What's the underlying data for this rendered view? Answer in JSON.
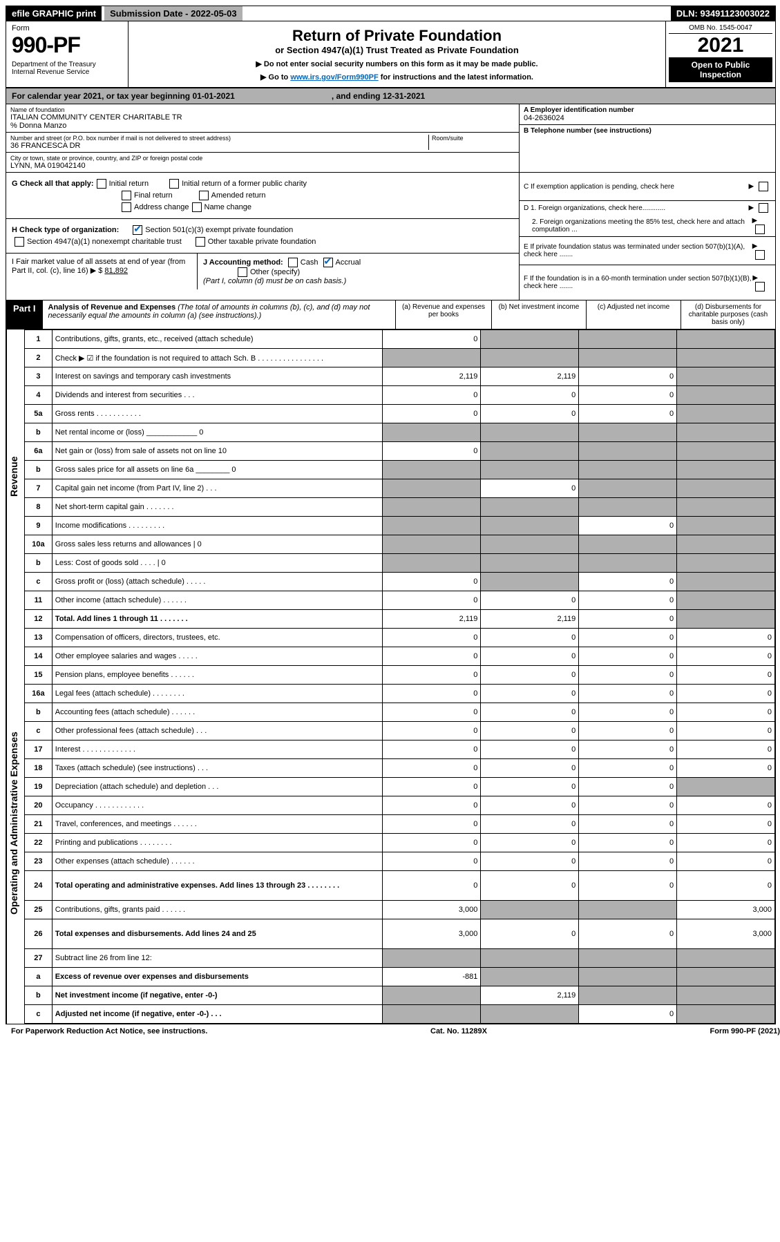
{
  "topbar": {
    "efile": "efile GRAPHIC print",
    "submission": "Submission Date - 2022-05-03",
    "dln": "DLN: 93491123003022"
  },
  "header": {
    "form": "Form",
    "num": "990-PF",
    "dept": "Department of the Treasury\nInternal Revenue Service",
    "title": "Return of Private Foundation",
    "subtitle": "or Section 4947(a)(1) Trust Treated as Private Foundation",
    "note1": "▶ Do not enter social security numbers on this form as it may be made public.",
    "note2": "▶ Go to ",
    "link": "www.irs.gov/Form990PF",
    "note3": " for instructions and the latest information.",
    "omb": "OMB No. 1545-0047",
    "year": "2021",
    "open": "Open to Public Inspection"
  },
  "calyear": {
    "a": "For calendar year 2021, or tax year beginning 01-01-2021",
    "b": ", and ending 12-31-2021"
  },
  "info": {
    "name_label": "Name of foundation",
    "name": "ITALIAN COMMUNITY CENTER CHARITABLE TR",
    "care": "% Donna Manzo",
    "addr_label": "Number and street (or P.O. box number if mail is not delivered to street address)",
    "addr": "36 FRANCESCA DR",
    "room_label": "Room/suite",
    "city_label": "City or town, state or province, country, and ZIP or foreign postal code",
    "city": "LYNN, MA  019042140",
    "ein_label": "A Employer identification number",
    "ein": "04-2636024",
    "tel_label": "B Telephone number (see instructions)",
    "c": "C If exemption application is pending, check here",
    "d1": "D 1. Foreign organizations, check here............",
    "d2": "2. Foreign organizations meeting the 85% test, check here and attach computation ...",
    "e": "E  If private foundation status was terminated under section 507(b)(1)(A), check here .......",
    "f": "F  If the foundation is in a 60-month termination under section 507(b)(1)(B), check here ......."
  },
  "g": {
    "label": "G Check all that apply:",
    "initial": "Initial return",
    "initial_former": "Initial return of a former public charity",
    "final": "Final return",
    "amended": "Amended return",
    "addr": "Address change",
    "name": "Name change"
  },
  "h": {
    "label": "H Check type of organization:",
    "s501": "Section 501(c)(3) exempt private foundation",
    "s4947": "Section 4947(a)(1) nonexempt charitable trust",
    "other": "Other taxable private foundation"
  },
  "i": {
    "label": "I Fair market value of all assets at end of year (from Part II, col. (c), line 16) ▶ $",
    "val": "81,892"
  },
  "j": {
    "label": "J Accounting method:",
    "cash": "Cash",
    "accrual": "Accrual",
    "other": "Other (specify)",
    "note": "(Part I, column (d) must be on cash basis.)"
  },
  "part1": {
    "label": "Part I",
    "title": "Analysis of Revenue and Expenses",
    "note": "(The total of amounts in columns (b), (c), and (d) may not necessarily equal the amounts in column (a) (see instructions).)"
  },
  "cols": {
    "a": "(a) Revenue and expenses per books",
    "b": "(b) Net investment income",
    "c": "(c) Adjusted net income",
    "d": "(d) Disbursements for charitable purposes (cash basis only)"
  },
  "rev_label": "Revenue",
  "exp_label": "Operating and Administrative Expenses",
  "rows": [
    {
      "n": "1",
      "d": "Contributions, gifts, grants, etc., received (attach schedule)",
      "a": "0",
      "b": "",
      "c": "",
      "dd": "",
      "sb": true,
      "sc": true,
      "sd": true
    },
    {
      "n": "2",
      "d": "Check ▶ ☑ if the foundation is not required to attach Sch. B   . . . . . . . . . . . . . . . .",
      "a": "",
      "b": "",
      "c": "",
      "dd": "",
      "sa": true,
      "sb": true,
      "sc": true,
      "sd": true
    },
    {
      "n": "3",
      "d": "Interest on savings and temporary cash investments",
      "a": "2,119",
      "b": "2,119",
      "c": "0",
      "dd": "",
      "sd": true
    },
    {
      "n": "4",
      "d": "Dividends and interest from securities   .  .  .",
      "a": "0",
      "b": "0",
      "c": "0",
      "dd": "",
      "sd": true
    },
    {
      "n": "5a",
      "d": "Gross rents   .  .  .  .  .  .  .  .  .  .  .",
      "a": "0",
      "b": "0",
      "c": "0",
      "dd": "",
      "sd": true
    },
    {
      "n": "b",
      "d": "Net rental income or (loss)  ____________ 0",
      "a": "",
      "b": "",
      "c": "",
      "dd": "",
      "sa": true,
      "sb": true,
      "sc": true,
      "sd": true
    },
    {
      "n": "6a",
      "d": "Net gain or (loss) from sale of assets not on line 10",
      "a": "0",
      "b": "",
      "c": "",
      "dd": "",
      "sb": true,
      "sc": true,
      "sd": true
    },
    {
      "n": "b",
      "d": "Gross sales price for all assets on line 6a ________ 0",
      "a": "",
      "b": "",
      "c": "",
      "dd": "",
      "sa": true,
      "sb": true,
      "sc": true,
      "sd": true
    },
    {
      "n": "7",
      "d": "Capital gain net income (from Part IV, line 2)  .  .  .",
      "a": "",
      "b": "0",
      "c": "",
      "dd": "",
      "sa": true,
      "sc": true,
      "sd": true
    },
    {
      "n": "8",
      "d": "Net short-term capital gain  .  .  .  .  .  .  .",
      "a": "",
      "b": "",
      "c": "",
      "dd": "",
      "sa": true,
      "sb": true,
      "sc": true,
      "sd": true
    },
    {
      "n": "9",
      "d": "Income modifications  .  .  .  .  .  .  .  .  .",
      "a": "",
      "b": "",
      "c": "0",
      "dd": "",
      "sa": true,
      "sb": true,
      "sd": true
    },
    {
      "n": "10a",
      "d": "Gross sales less returns and allowances   | 0",
      "a": "",
      "b": "",
      "c": "",
      "dd": "",
      "sa": true,
      "sb": true,
      "sc": true,
      "sd": true
    },
    {
      "n": "b",
      "d": "Less: Cost of goods sold   .  .  .  .   | 0",
      "a": "",
      "b": "",
      "c": "",
      "dd": "",
      "sa": true,
      "sb": true,
      "sc": true,
      "sd": true
    },
    {
      "n": "c",
      "d": "Gross profit or (loss) (attach schedule)   .  .  .  .  .",
      "a": "0",
      "b": "",
      "c": "0",
      "dd": "",
      "sb": true,
      "sd": true
    },
    {
      "n": "11",
      "d": "Other income (attach schedule)   .  .  .  .  .  .",
      "a": "0",
      "b": "0",
      "c": "0",
      "dd": "",
      "sd": true
    },
    {
      "n": "12",
      "d": "Total. Add lines 1 through 11   .  .  .  .  .  .  .",
      "a": "2,119",
      "b": "2,119",
      "c": "0",
      "dd": "",
      "bold": true,
      "sd": true
    },
    {
      "n": "13",
      "d": "Compensation of officers, directors, trustees, etc.",
      "a": "0",
      "b": "0",
      "c": "0",
      "dd": "0"
    },
    {
      "n": "14",
      "d": "Other employee salaries and wages   .  .  .  .  .",
      "a": "0",
      "b": "0",
      "c": "0",
      "dd": "0"
    },
    {
      "n": "15",
      "d": "Pension plans, employee benefits  .  .  .  .  .  .",
      "a": "0",
      "b": "0",
      "c": "0",
      "dd": "0"
    },
    {
      "n": "16a",
      "d": "Legal fees (attach schedule)  .  .  .  .  .  .  .  .",
      "a": "0",
      "b": "0",
      "c": "0",
      "dd": "0"
    },
    {
      "n": "b",
      "d": "Accounting fees (attach schedule)  .  .  .  .  .  .",
      "a": "0",
      "b": "0",
      "c": "0",
      "dd": "0"
    },
    {
      "n": "c",
      "d": "Other professional fees (attach schedule)   .  .  .",
      "a": "0",
      "b": "0",
      "c": "0",
      "dd": "0"
    },
    {
      "n": "17",
      "d": "Interest  .  .  .  .  .  .  .  .  .  .  .  .  .",
      "a": "0",
      "b": "0",
      "c": "0",
      "dd": "0"
    },
    {
      "n": "18",
      "d": "Taxes (attach schedule) (see instructions)   .  .  .",
      "a": "0",
      "b": "0",
      "c": "0",
      "dd": "0"
    },
    {
      "n": "19",
      "d": "Depreciation (attach schedule) and depletion   .  .  .",
      "a": "0",
      "b": "0",
      "c": "0",
      "dd": "",
      "sd": true
    },
    {
      "n": "20",
      "d": "Occupancy  .  .  .  .  .  .  .  .  .  .  .  .",
      "a": "0",
      "b": "0",
      "c": "0",
      "dd": "0"
    },
    {
      "n": "21",
      "d": "Travel, conferences, and meetings  .  .  .  .  .  .",
      "a": "0",
      "b": "0",
      "c": "0",
      "dd": "0"
    },
    {
      "n": "22",
      "d": "Printing and publications  .  .  .  .  .  .  .  .",
      "a": "0",
      "b": "0",
      "c": "0",
      "dd": "0"
    },
    {
      "n": "23",
      "d": "Other expenses (attach schedule)  .  .  .  .  .  .",
      "a": "0",
      "b": "0",
      "c": "0",
      "dd": "0"
    },
    {
      "n": "24",
      "d": "Total operating and administrative expenses. Add lines 13 through 23   .  .  .  .  .  .  .  .",
      "a": "0",
      "b": "0",
      "c": "0",
      "dd": "0",
      "bold": true,
      "tall": true
    },
    {
      "n": "25",
      "d": "Contributions, gifts, grants paid   .  .  .  .  .  .",
      "a": "3,000",
      "b": "",
      "c": "",
      "dd": "3,000",
      "sb": true,
      "sc": true
    },
    {
      "n": "26",
      "d": "Total expenses and disbursements. Add lines 24 and 25",
      "a": "3,000",
      "b": "0",
      "c": "0",
      "dd": "3,000",
      "bold": true,
      "tall": true
    },
    {
      "n": "27",
      "d": "Subtract line 26 from line 12:",
      "a": "",
      "b": "",
      "c": "",
      "dd": "",
      "sa": true,
      "sb": true,
      "sc": true,
      "sd": true
    },
    {
      "n": "a",
      "d": "Excess of revenue over expenses and disbursements",
      "a": "-881",
      "b": "",
      "c": "",
      "dd": "",
      "bold": true,
      "sb": true,
      "sc": true,
      "sd": true
    },
    {
      "n": "b",
      "d": "Net investment income (if negative, enter -0-)",
      "a": "",
      "b": "2,119",
      "c": "",
      "dd": "",
      "bold": true,
      "sa": true,
      "sc": true,
      "sd": true
    },
    {
      "n": "c",
      "d": "Adjusted net income (if negative, enter -0-)   .  .  .",
      "a": "",
      "b": "",
      "c": "0",
      "dd": "",
      "bold": true,
      "sa": true,
      "sb": true,
      "sd": true
    }
  ],
  "footer": {
    "left": "For Paperwork Reduction Act Notice, see instructions.",
    "mid": "Cat. No. 11289X",
    "right": "Form 990-PF (2021)"
  }
}
